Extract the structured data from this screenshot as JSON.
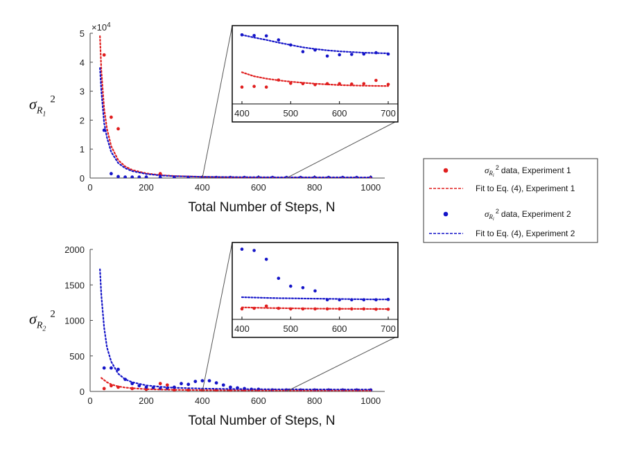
{
  "colors": {
    "exp1": "#e01e1e",
    "exp2": "#1414c8",
    "axis": "#444444"
  },
  "legend": {
    "entries": [
      {
        "symbol": "σ",
        "sub": "R",
        "subsub": "i",
        "sup": "2",
        "text": "data, Experiment 1",
        "kind": "dot",
        "color": "#e01e1e"
      },
      {
        "text": "Fit to Eq. (4), Experiment 1",
        "kind": "dash",
        "color": "#e01e1e"
      },
      {
        "symbol": "σ",
        "sub": "R",
        "subsub": "i",
        "sup": "2",
        "text": "data, Experiment 2",
        "kind": "dot",
        "color": "#1414c8"
      },
      {
        "text": "Fit to Eq. (4), Experiment 2",
        "kind": "dash",
        "color": "#1414c8"
      }
    ]
  },
  "chart_data": [
    {
      "id": "top",
      "type": "scatter",
      "ylabel": {
        "symbol": "σ",
        "sub": "R",
        "subsub": "1",
        "sup": "2"
      },
      "xlabel": "Total Number of Steps, N",
      "xlim": [
        0,
        1050
      ],
      "ylim": [
        0,
        50000
      ],
      "xticks": [
        "0",
        "200",
        "400",
        "600",
        "800",
        "1000"
      ],
      "yticks": [
        "0",
        "1",
        "2",
        "3",
        "4",
        "5"
      ],
      "y_multiplier": {
        "base": "×10",
        "exp": "4"
      },
      "series": [
        {
          "name": "Experiment 1 data",
          "kind": "dots",
          "color": "#e01e1e",
          "x": [
            50,
            75,
            100,
            250,
            300,
            350,
            400,
            450,
            500,
            550,
            600,
            650,
            700,
            750,
            800,
            850,
            900,
            950,
            1000
          ],
          "y": [
            42500,
            21000,
            17000,
            1500,
            100,
            100,
            100,
            100,
            100,
            100,
            100,
            100,
            100,
            100,
            100,
            100,
            100,
            100,
            100
          ]
        },
        {
          "name": "Experiment 2 data",
          "kind": "dots",
          "color": "#1414c8",
          "x": [
            50,
            75,
            100,
            125,
            150,
            175,
            200,
            250,
            300,
            350,
            400,
            450,
            500,
            550,
            600,
            650,
            700,
            750,
            800,
            850,
            900,
            950,
            1000
          ],
          "y": [
            16500,
            1500,
            500,
            300,
            300,
            300,
            300,
            250,
            200,
            200,
            200,
            200,
            200,
            200,
            200,
            200,
            200,
            200,
            200,
            200,
            200,
            200,
            200
          ]
        },
        {
          "name": "Fit to Eq. (4), Experiment 1",
          "kind": "fit",
          "color": "#e01e1e",
          "x": [
            35,
            40,
            50,
            60,
            75,
            100,
            125,
            150,
            200,
            250,
            300,
            400,
            500,
            600,
            700,
            800,
            900,
            1000
          ],
          "y": [
            49000,
            37000,
            24000,
            17000,
            11000,
            6200,
            4000,
            2800,
            1600,
            1000,
            700,
            400,
            260,
            180,
            130,
            110,
            90,
            80
          ]
        },
        {
          "name": "Fit to Eq. (4), Experiment 2",
          "kind": "fit",
          "color": "#1414c8",
          "x": [
            35,
            40,
            50,
            60,
            75,
            100,
            125,
            150,
            200,
            250,
            300,
            400,
            500,
            600,
            700,
            800,
            900,
            1000
          ],
          "y": [
            38000,
            30000,
            19000,
            14000,
            9000,
            5200,
            3400,
            2400,
            1400,
            900,
            650,
            420,
            330,
            280,
            250,
            240,
            230,
            220
          ]
        }
      ],
      "inset": {
        "xlim": [
          390,
          710
        ],
        "ylim": [
          -900,
          1300
        ],
        "xticks": [
          "400",
          "500",
          "600",
          "700"
        ],
        "series": [
          {
            "name": "Experiment 1 data",
            "kind": "dots",
            "color": "#e01e1e",
            "x": [
              400,
              425,
              450,
              475,
              500,
              525,
              550,
              575,
              600,
              625,
              650,
              675,
              700
            ],
            "y": [
              -400,
              -380,
              -400,
              -190,
              -290,
              -300,
              -330,
              -300,
              -300,
              -310,
              -300,
              -200,
              -320
            ]
          },
          {
            "name": "Experiment 2 data",
            "kind": "dots",
            "color": "#1414c8",
            "x": [
              400,
              425,
              450,
              475,
              500,
              525,
              550,
              575,
              600,
              625,
              650,
              675,
              700
            ],
            "y": [
              1150,
              1130,
              1120,
              1000,
              850,
              650,
              700,
              520,
              560,
              570,
              580,
              620,
              580
            ]
          },
          {
            "name": "Fit to Eq. (4), Experiment 1",
            "kind": "fit",
            "color": "#e01e1e",
            "x": [
              400,
              425,
              450,
              475,
              500,
              525,
              550,
              575,
              600,
              625,
              650,
              675,
              700
            ],
            "y": [
              40,
              -80,
              -150,
              -200,
              -240,
              -270,
              -300,
              -320,
              -340,
              -350,
              -360,
              -365,
              -370
            ]
          },
          {
            "name": "Fit to Eq. (4), Experiment 2",
            "kind": "fit",
            "color": "#1414c8",
            "x": [
              400,
              425,
              450,
              475,
              500,
              525,
              550,
              575,
              600,
              625,
              650,
              675,
              700
            ],
            "y": [
              1150,
              1070,
              1000,
              920,
              850,
              780,
              730,
              690,
              660,
              640,
              620,
              610,
              600
            ]
          }
        ]
      }
    },
    {
      "id": "bottom",
      "type": "scatter",
      "ylabel": {
        "symbol": "σ",
        "sub": "R",
        "subsub": "2",
        "sup": "2"
      },
      "xlabel": "Total Number of Steps, N",
      "xlim": [
        0,
        1050
      ],
      "ylim": [
        0,
        2000
      ],
      "xticks": [
        "0",
        "200",
        "400",
        "600",
        "800",
        "1000"
      ],
      "yticks": [
        "0",
        "500",
        "1000",
        "1500",
        "2000"
      ],
      "series": [
        {
          "name": "Experiment 1 data",
          "kind": "dots",
          "color": "#e01e1e",
          "x": [
            50,
            75,
            100,
            150,
            200,
            250,
            275,
            300,
            350,
            400,
            450,
            500,
            550,
            600,
            650,
            700,
            750,
            800,
            850,
            900,
            950,
            1000
          ],
          "y": [
            40,
            80,
            60,
            40,
            30,
            110,
            90,
            20,
            20,
            20,
            20,
            20,
            20,
            20,
            20,
            20,
            20,
            20,
            20,
            20,
            20,
            20
          ]
        },
        {
          "name": "Experiment 2 data",
          "kind": "dots",
          "color": "#1414c8",
          "x": [
            50,
            75,
            100,
            125,
            150,
            175,
            200,
            225,
            250,
            275,
            300,
            325,
            350,
            375,
            400,
            425,
            450,
            475,
            500,
            525,
            550,
            575,
            600,
            650,
            700,
            750,
            800,
            850,
            900,
            950,
            1000
          ],
          "y": [
            330,
            330,
            310,
            170,
            110,
            80,
            60,
            50,
            40,
            40,
            60,
            110,
            100,
            140,
            150,
            150,
            120,
            90,
            60,
            50,
            40,
            30,
            30,
            20,
            20,
            20,
            20,
            20,
            20,
            20,
            20
          ]
        },
        {
          "name": "Fit to Eq. (4), Experiment 1",
          "kind": "fit",
          "color": "#e01e1e",
          "x": [
            40,
            50,
            60,
            75,
            100,
            125,
            150,
            200,
            250,
            300,
            400,
            500,
            600,
            700,
            800,
            900,
            1000
          ],
          "y": [
            190,
            160,
            130,
            100,
            70,
            55,
            45,
            32,
            26,
            22,
            18,
            16,
            15,
            14,
            13,
            13,
            12
          ]
        },
        {
          "name": "Fit to Eq. (4), Experiment 2",
          "kind": "fit",
          "color": "#1414c8",
          "x": [
            35,
            40,
            50,
            60,
            75,
            100,
            125,
            150,
            200,
            250,
            300,
            400,
            500,
            600,
            700,
            800,
            900,
            1000
          ],
          "y": [
            1720,
            1350,
            900,
            620,
            420,
            250,
            170,
            130,
            85,
            65,
            52,
            40,
            34,
            31,
            29,
            28,
            27,
            26
          ]
        }
      ],
      "inset": {
        "xlim": [
          390,
          710
        ],
        "ylim": [
          -30,
          200
        ],
        "xticks": [
          "400",
          "500",
          "600",
          "700"
        ],
        "series": [
          {
            "name": "Experiment 1 data",
            "kind": "dots",
            "color": "#e01e1e",
            "x": [
              400,
              425,
              450,
              475,
              500,
              525,
              550,
              575,
              600,
              625,
              650,
              675,
              700
            ],
            "y": [
              3,
              5,
              12,
              5,
              3,
              3,
              3,
              3,
              3,
              3,
              3,
              2,
              2
            ]
          },
          {
            "name": "Experiment 2 data",
            "kind": "dots",
            "color": "#1414c8",
            "x": [
              400,
              425,
              450,
              475,
              500,
              525,
              550,
              575,
              600,
              625,
              650,
              675,
              700
            ],
            "y": [
              192,
              188,
              160,
              100,
              75,
              70,
              60,
              32,
              32,
              32,
              32,
              32,
              33
            ]
          },
          {
            "name": "Fit to Eq. (4), Experiment 1",
            "kind": "fit",
            "color": "#e01e1e",
            "x": [
              400,
              425,
              450,
              475,
              500,
              525,
              550,
              575,
              600,
              625,
              650,
              675,
              700
            ],
            "y": [
              8,
              7,
              6,
              5.5,
              5,
              4.5,
              4,
              3.8,
              3.5,
              3.2,
              3,
              2.8,
              2.6
            ]
          },
          {
            "name": "Fit to Eq. (4), Experiment 2",
            "kind": "fit",
            "color": "#1414c8",
            "x": [
              400,
              425,
              450,
              475,
              500,
              525,
              550,
              575,
              600,
              625,
              650,
              675,
              700
            ],
            "y": [
              40,
              39,
              38,
              37,
              36.5,
              36,
              35.5,
              35,
              34.5,
              34,
              33.5,
              33,
              33
            ]
          }
        ]
      }
    }
  ]
}
